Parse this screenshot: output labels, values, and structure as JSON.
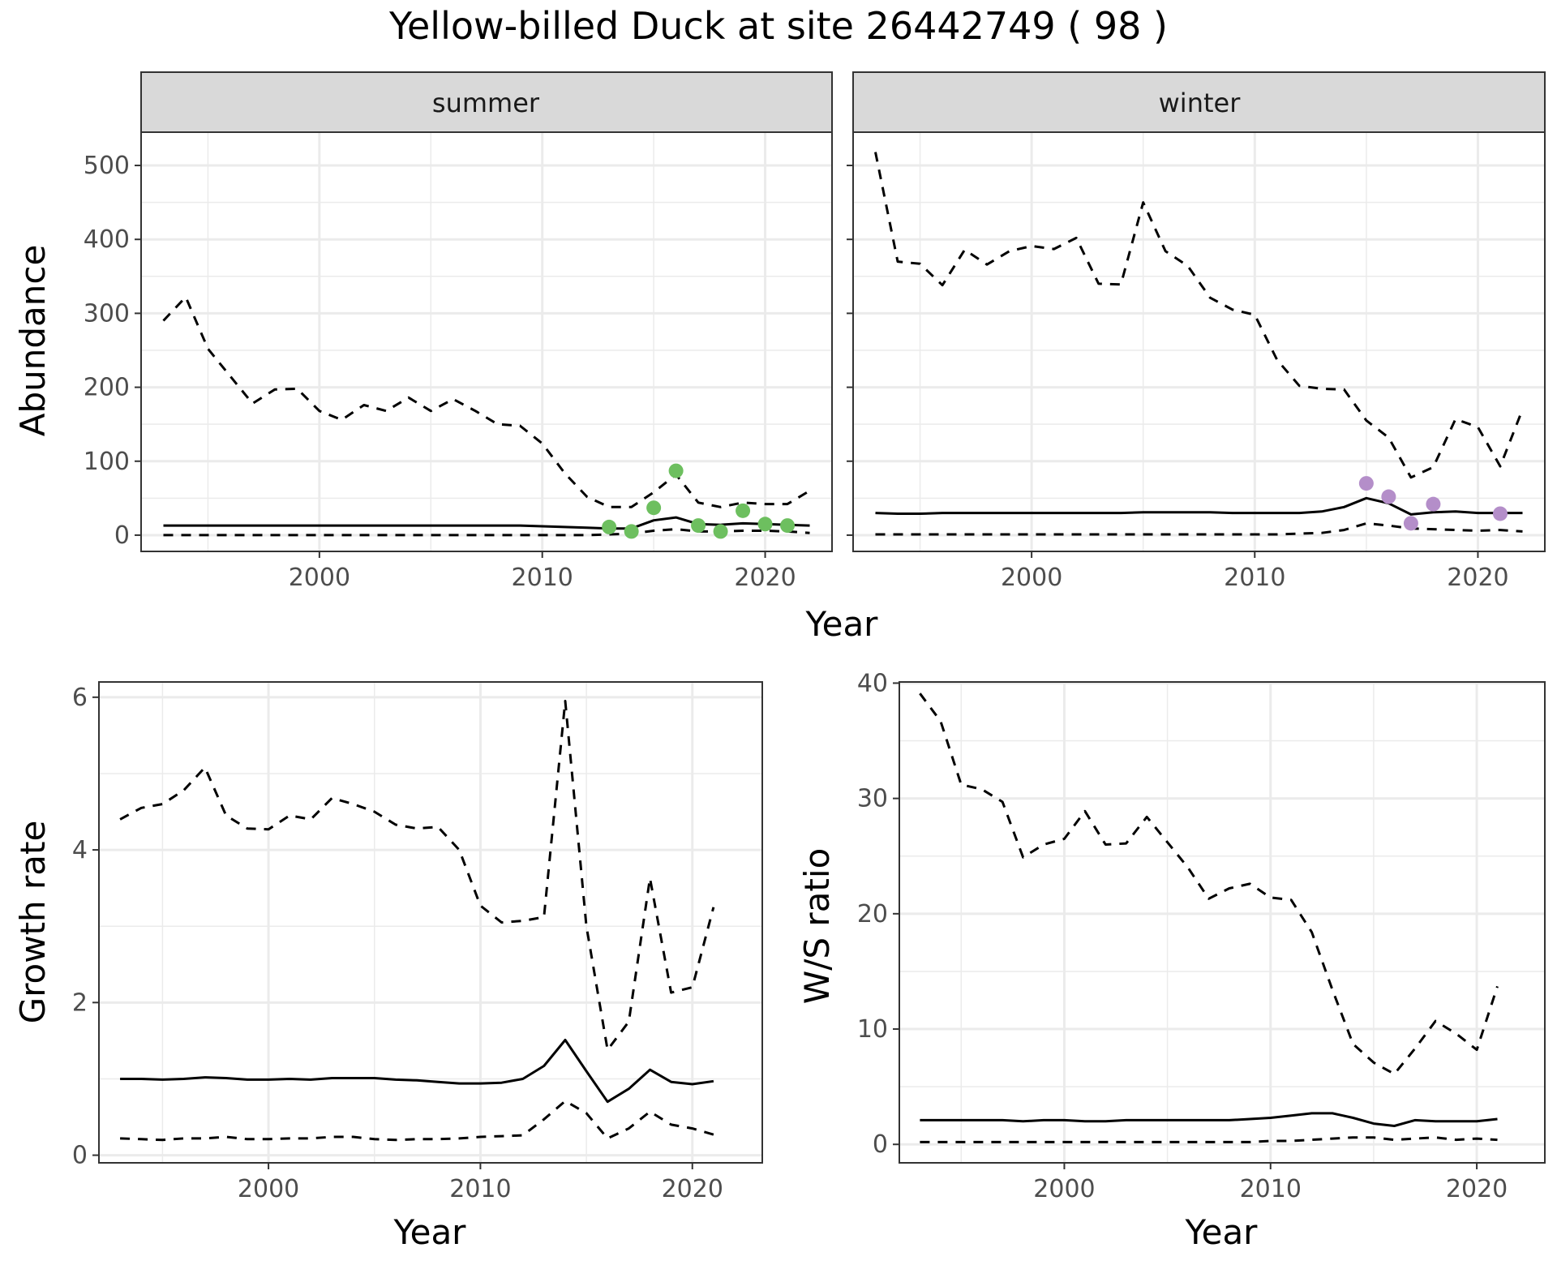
{
  "title": "Yellow-billed Duck at site 26442749 ( 98 )",
  "colors": {
    "summer_points": "#6dbf5f",
    "winter_points": "#b48ec9",
    "line": "#000000",
    "grid": "#ebebeb",
    "strip_bg": "#d9d9d9"
  },
  "chart_data": [
    {
      "type": "line",
      "facet": "summer",
      "strip_label": "summer",
      "xlabel": "Year",
      "ylabel": "Abundance",
      "xlim": [
        1992,
        2023
      ],
      "ylim": [
        -22,
        545
      ],
      "xticks": [
        2000,
        2010,
        2020
      ],
      "yticks": [
        0,
        100,
        200,
        300,
        400,
        500
      ],
      "x": [
        1993,
        1994,
        1995,
        1996,
        1997,
        1998,
        1999,
        2000,
        2001,
        2002,
        2003,
        2004,
        2005,
        2006,
        2007,
        2008,
        2009,
        2010,
        2011,
        2012,
        2013,
        2014,
        2015,
        2016,
        2017,
        2018,
        2019,
        2020,
        2021,
        2022
      ],
      "series": [
        {
          "role": "estimate",
          "style": "solid",
          "values": [
            13,
            13,
            13,
            13,
            13,
            13,
            13,
            13,
            13,
            13,
            13,
            13,
            13,
            13,
            13,
            13,
            13,
            12,
            11,
            10,
            9,
            9,
            20,
            24,
            15,
            14,
            16,
            15,
            14,
            13
          ]
        },
        {
          "role": "upper",
          "style": "dashed",
          "values": [
            290,
            322,
            252,
            215,
            178,
            197,
            198,
            168,
            156,
            176,
            168,
            186,
            168,
            184,
            168,
            150,
            148,
            124,
            84,
            52,
            38,
            38,
            58,
            82,
            44,
            38,
            44,
            42,
            42,
            60
          ]
        },
        {
          "role": "lower",
          "style": "dashed",
          "values": [
            0,
            0,
            0,
            0,
            0,
            0,
            0,
            0,
            0,
            0,
            0,
            0,
            0,
            0,
            0,
            0,
            0,
            0,
            0,
            0,
            1,
            2,
            6,
            8,
            5,
            5,
            6,
            6,
            5,
            3
          ]
        }
      ],
      "points": {
        "x": [
          2013,
          2014,
          2015,
          2016,
          2017,
          2018,
          2019,
          2020,
          2021
        ],
        "y": [
          11,
          5,
          37,
          87,
          13,
          5,
          33,
          15,
          13
        ],
        "color": "#6dbf5f"
      }
    },
    {
      "type": "line",
      "facet": "winter",
      "strip_label": "winter",
      "xlabel": "Year",
      "ylabel": "Abundance",
      "xlim": [
        1992,
        2023
      ],
      "ylim": [
        -22,
        545
      ],
      "xticks": [
        2000,
        2010,
        2020
      ],
      "yticks": [
        0,
        100,
        200,
        300,
        400,
        500
      ],
      "x": [
        1993,
        1994,
        1995,
        1996,
        1997,
        1998,
        1999,
        2000,
        2001,
        2002,
        2003,
        2004,
        2005,
        2006,
        2007,
        2008,
        2009,
        2010,
        2011,
        2012,
        2013,
        2014,
        2015,
        2016,
        2017,
        2018,
        2019,
        2020,
        2021,
        2022
      ],
      "series": [
        {
          "role": "estimate",
          "style": "solid",
          "values": [
            30,
            29,
            29,
            30,
            30,
            30,
            30,
            30,
            30,
            30,
            30,
            30,
            31,
            31,
            31,
            31,
            30,
            30,
            30,
            30,
            32,
            38,
            50,
            43,
            28,
            31,
            32,
            30,
            30,
            30
          ]
        },
        {
          "role": "upper",
          "style": "dashed",
          "values": [
            518,
            370,
            367,
            338,
            386,
            366,
            384,
            391,
            387,
            402,
            340,
            339,
            450,
            384,
            364,
            321,
            305,
            298,
            237,
            202,
            198,
            197,
            155,
            132,
            78,
            92,
            157,
            146,
            93,
            170
          ]
        },
        {
          "role": "lower",
          "style": "dashed",
          "values": [
            1,
            1,
            1,
            1,
            1,
            1,
            1,
            1,
            1,
            1,
            1,
            1,
            1,
            1,
            1,
            1,
            1,
            1,
            1,
            2,
            3,
            7,
            16,
            13,
            9,
            8,
            7,
            6,
            7,
            5
          ]
        }
      ],
      "points": {
        "x": [
          2015,
          2016,
          2017,
          2018,
          2021
        ],
        "y": [
          70,
          52,
          16,
          42,
          29
        ],
        "color": "#b48ec9"
      }
    },
    {
      "type": "line",
      "xlabel": "Year",
      "ylabel": "Growth rate",
      "xlim": [
        1992,
        2023.3
      ],
      "ylim": [
        -0.1,
        6.2
      ],
      "xticks": [
        2000,
        2010,
        2020
      ],
      "yticks": [
        0,
        2,
        4,
        6
      ],
      "x": [
        1993,
        1994,
        1995,
        1996,
        1997,
        1998,
        1999,
        2000,
        2001,
        2002,
        2003,
        2004,
        2005,
        2006,
        2007,
        2008,
        2009,
        2010,
        2011,
        2012,
        2013,
        2014,
        2015,
        2016,
        2017,
        2018,
        2019,
        2020,
        2021
      ],
      "series": [
        {
          "role": "estimate",
          "style": "solid",
          "values": [
            1.0,
            1.0,
            0.99,
            1.0,
            1.02,
            1.01,
            0.99,
            0.99,
            1.0,
            0.99,
            1.01,
            1.01,
            1.01,
            0.99,
            0.98,
            0.96,
            0.94,
            0.94,
            0.95,
            1.0,
            1.17,
            1.51,
            1.1,
            0.7,
            0.87,
            1.12,
            0.96,
            0.93,
            0.97
          ]
        },
        {
          "role": "upper",
          "style": "dashed",
          "values": [
            4.4,
            4.55,
            4.6,
            4.78,
            5.08,
            4.45,
            4.28,
            4.27,
            4.45,
            4.4,
            4.68,
            4.6,
            4.5,
            4.33,
            4.28,
            4.3,
            4.0,
            3.27,
            3.05,
            3.07,
            3.12,
            5.95,
            3.0,
            1.38,
            1.75,
            3.63,
            2.13,
            2.2,
            3.25
          ]
        },
        {
          "role": "lower",
          "style": "dashed",
          "values": [
            0.22,
            0.21,
            0.2,
            0.22,
            0.22,
            0.24,
            0.21,
            0.21,
            0.22,
            0.22,
            0.24,
            0.24,
            0.21,
            0.2,
            0.21,
            0.21,
            0.22,
            0.24,
            0.25,
            0.26,
            0.47,
            0.71,
            0.55,
            0.22,
            0.35,
            0.57,
            0.4,
            0.35,
            0.27
          ]
        }
      ]
    },
    {
      "type": "line",
      "xlabel": "Year",
      "ylabel": "W/S ratio",
      "xlim": [
        1992,
        2023.3
      ],
      "ylim": [
        -1.6,
        40.1
      ],
      "xticks": [
        2000,
        2010,
        2020
      ],
      "yticks": [
        0,
        10,
        20,
        30,
        40
      ],
      "x": [
        1993,
        1994,
        1995,
        1996,
        1997,
        1998,
        1999,
        2000,
        2001,
        2002,
        2003,
        2004,
        2005,
        2006,
        2007,
        2008,
        2009,
        2010,
        2011,
        2012,
        2013,
        2014,
        2015,
        2016,
        2017,
        2018,
        2019,
        2020,
        2021
      ],
      "series": [
        {
          "role": "estimate",
          "style": "solid",
          "values": [
            2.1,
            2.1,
            2.1,
            2.1,
            2.1,
            2.0,
            2.1,
            2.1,
            2.0,
            2.0,
            2.1,
            2.1,
            2.1,
            2.1,
            2.1,
            2.1,
            2.2,
            2.3,
            2.5,
            2.7,
            2.7,
            2.3,
            1.8,
            1.6,
            2.1,
            2.0,
            2.0,
            2.0,
            2.2
          ]
        },
        {
          "role": "upper",
          "style": "dashed",
          "values": [
            39.1,
            36.7,
            31.2,
            30.8,
            29.7,
            24.9,
            26.0,
            26.5,
            28.9,
            26.0,
            26.1,
            28.4,
            26.2,
            24.0,
            21.3,
            22.2,
            22.6,
            21.4,
            21.2,
            18.4,
            13.4,
            8.7,
            7.1,
            6.1,
            8.3,
            10.7,
            9.6,
            8.2,
            13.7
          ]
        },
        {
          "role": "lower",
          "style": "dashed",
          "values": [
            0.2,
            0.2,
            0.2,
            0.2,
            0.2,
            0.2,
            0.2,
            0.2,
            0.2,
            0.2,
            0.2,
            0.2,
            0.2,
            0.2,
            0.2,
            0.2,
            0.2,
            0.3,
            0.3,
            0.4,
            0.5,
            0.6,
            0.6,
            0.4,
            0.5,
            0.6,
            0.4,
            0.5,
            0.4
          ]
        }
      ]
    }
  ]
}
